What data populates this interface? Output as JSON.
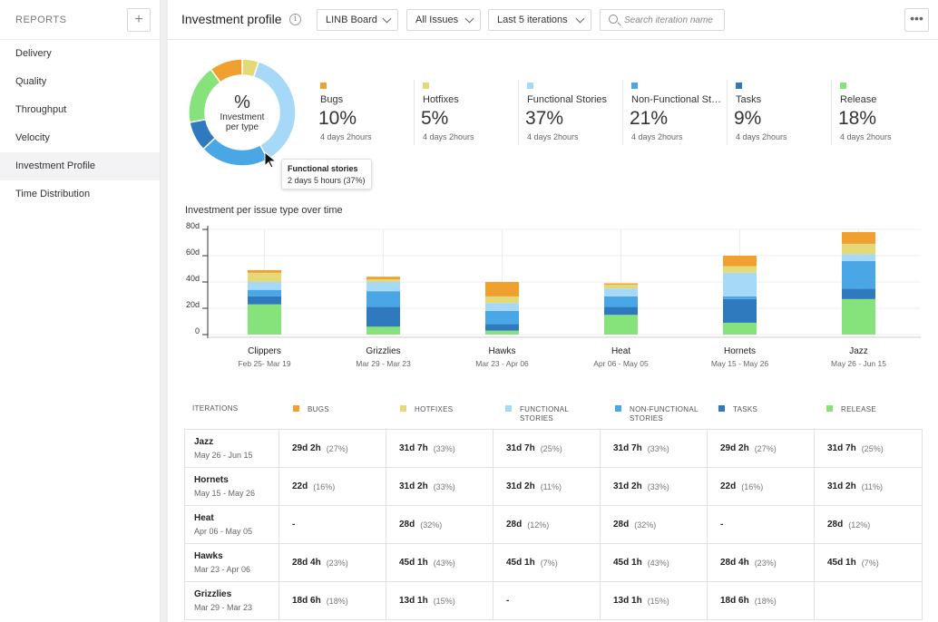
{
  "sidebar": {
    "title": "REPORTS",
    "add_label": "+",
    "items": [
      {
        "label": "Delivery"
      },
      {
        "label": "Quality"
      },
      {
        "label": "Throughput"
      },
      {
        "label": "Velocity"
      },
      {
        "label": "Investment Profile",
        "active": true
      },
      {
        "label": "Time Distribution"
      }
    ]
  },
  "header": {
    "title": "Investment profile",
    "info_icon": "info-icon",
    "board_dropdown": "LINB Board",
    "issues_dropdown": "All Issues",
    "iterations_dropdown": "Last 5 iterations",
    "search_placeholder": "Search iteration name",
    "more_label": "•••"
  },
  "donut": {
    "center_symbol": "%",
    "center_label": "Investment per type",
    "tooltip": {
      "title": "Functional stories",
      "value": "2 days 5 hours  (37%)"
    }
  },
  "colors": {
    "bugs": "#f0a030",
    "hotfixes": "#e4d978",
    "functional": "#a6d8f7",
    "nonfunctional": "#4aa7e6",
    "tasks": "#2f79bf",
    "release": "#86e27a"
  },
  "summary": [
    {
      "key": "bugs",
      "name": "Bugs",
      "percent": "10%",
      "time": "4 days 2hours",
      "value": 10
    },
    {
      "key": "hotfixes",
      "name": "Hotfixes",
      "percent": "5%",
      "time": "4 days 2hours",
      "value": 5
    },
    {
      "key": "functional",
      "name": "Functional Stories",
      "percent": "37%",
      "time": "4 days 2hours",
      "value": 37
    },
    {
      "key": "nonfunctional",
      "name": "Non-Functional Stories",
      "percent": "21%",
      "time": "4 days 2hours",
      "value": 21
    },
    {
      "key": "tasks",
      "name": "Tasks",
      "percent": "9%",
      "time": "4 days 2hours",
      "value": 9
    },
    {
      "key": "release",
      "name": "Release",
      "percent": "18%",
      "time": "4 days 2hours",
      "value": 18
    }
  ],
  "chart_data": {
    "type": "bar",
    "stacked": true,
    "title": "Investment per issue type over time",
    "yticks": [
      "80d",
      "60d",
      "40d",
      "20d",
      "0"
    ],
    "ylim": [
      0,
      80
    ],
    "categories": [
      "Clippers",
      "Grizzlies",
      "Hawks",
      "Heat",
      "Hornets",
      "Jazz"
    ],
    "date_ranges": [
      "Feb 25- Mar 19",
      "Mar 29 - Mar 23",
      "Mar 23 - Apr 06",
      "Apr 06 - May 05",
      "May 15 - May 26",
      "May 26 - Jun 15"
    ],
    "series": [
      {
        "key": "release",
        "values": [
          23,
          6,
          3,
          15,
          9,
          27
        ]
      },
      {
        "key": "tasks",
        "values": [
          6,
          15,
          5,
          6,
          18,
          8
        ]
      },
      {
        "key": "nonfunctional",
        "values": [
          5,
          12,
          10,
          8,
          2,
          21
        ]
      },
      {
        "key": "functional",
        "values": [
          6,
          7,
          6,
          6,
          18,
          5
        ]
      },
      {
        "key": "hotfixes",
        "values": [
          7,
          2,
          5,
          3,
          5,
          8
        ]
      },
      {
        "key": "bugs",
        "values": [
          2,
          2,
          11,
          1,
          8,
          9
        ]
      }
    ]
  },
  "table": {
    "header_first": "ITERATIONS",
    "columns": [
      {
        "key": "bugs",
        "label": "BUGS"
      },
      {
        "key": "hotfixes",
        "label": "HOTFIXES"
      },
      {
        "key": "functional",
        "label": "FUNCTIONAL STORIES"
      },
      {
        "key": "nonfunctional",
        "label": "NON-FUNCTIONAL STORIES"
      },
      {
        "key": "tasks",
        "label": "TASKS"
      },
      {
        "key": "release",
        "label": "RELEASE"
      }
    ],
    "rows": [
      {
        "name": "Jazz",
        "dates": "May 26 - Jun 15",
        "cells": [
          [
            "29d 2h",
            "(27%)"
          ],
          [
            "31d 7h",
            "(33%)"
          ],
          [
            "31d 7h",
            "(25%)"
          ],
          [
            "31d 7h",
            "(33%)"
          ],
          [
            "29d 2h",
            "(27%)"
          ],
          [
            "31d 7h",
            "(25%)"
          ]
        ]
      },
      {
        "name": "Hornets",
        "dates": "May 15 - May 26",
        "cells": [
          [
            "22d",
            "(16%)"
          ],
          [
            "31d 2h",
            "(33%)"
          ],
          [
            "31d 2h",
            "(11%)"
          ],
          [
            "31d 2h",
            "(33%)"
          ],
          [
            "22d",
            "(16%)"
          ],
          [
            "31d 2h",
            "(11%)"
          ]
        ]
      },
      {
        "name": "Heat",
        "dates": "Apr 06 - May 05",
        "cells": [
          [
            "-",
            ""
          ],
          [
            "28d",
            "(32%)"
          ],
          [
            "28d",
            "(12%)"
          ],
          [
            "28d",
            "(32%)"
          ],
          [
            "-",
            ""
          ],
          [
            "28d",
            "(12%)"
          ]
        ]
      },
      {
        "name": "Hawks",
        "dates": "Mar 23 - Apr 06",
        "cells": [
          [
            "28d 4h",
            "(23%)"
          ],
          [
            "45d 1h",
            "(43%)"
          ],
          [
            "45d 1h",
            "(7%)"
          ],
          [
            "45d 1h",
            "(43%)"
          ],
          [
            "28d 4h",
            "(23%)"
          ],
          [
            "45d 1h",
            "(7%)"
          ]
        ]
      },
      {
        "name": "Grizzlies",
        "dates": "Mar 29 - Mar 23",
        "cells": [
          [
            "18d 6h",
            "(18%)"
          ],
          [
            "13d 1h",
            "(15%)"
          ],
          [
            "-",
            ""
          ],
          [
            "13d 1h",
            "(15%)"
          ],
          [
            "18d 6h",
            "(18%)"
          ],
          [
            "",
            ""
          ]
        ]
      }
    ]
  }
}
